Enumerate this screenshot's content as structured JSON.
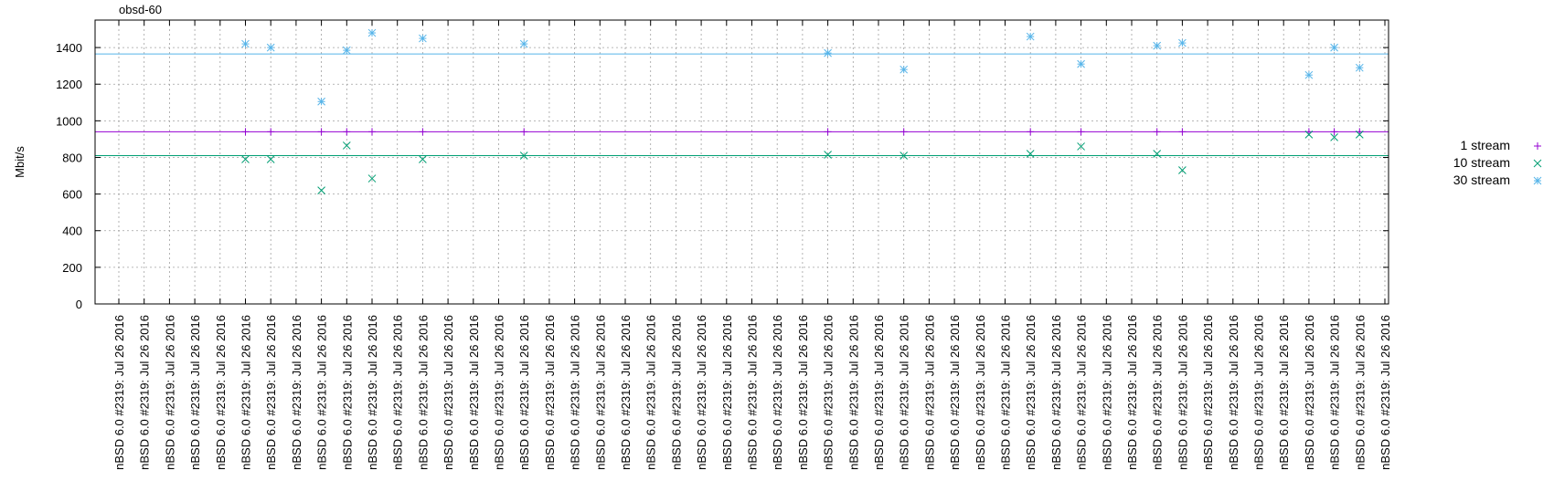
{
  "chart_data": {
    "type": "scatter",
    "title": "obsd-60",
    "ylabel": "Mbit/s",
    "xlabel": "",
    "ylim": [
      0,
      1550
    ],
    "yticks": [
      0,
      200,
      400,
      600,
      800,
      1000,
      1200,
      1400
    ],
    "grid": true,
    "legend_position": "right",
    "category_label": "nBSD 6.0 #2319: Jul 26 2016",
    "category_count": 51,
    "series": [
      {
        "name": "1 stream",
        "marker": "plus",
        "color": "#9400d3",
        "mean": 940,
        "points": [
          {
            "i": 5,
            "y": 940
          },
          {
            "i": 6,
            "y": 940
          },
          {
            "i": 8,
            "y": 940
          },
          {
            "i": 9,
            "y": 940
          },
          {
            "i": 10,
            "y": 940
          },
          {
            "i": 12,
            "y": 940
          },
          {
            "i": 16,
            "y": 940
          },
          {
            "i": 28,
            "y": 940
          },
          {
            "i": 31,
            "y": 940
          },
          {
            "i": 36,
            "y": 940
          },
          {
            "i": 38,
            "y": 940
          },
          {
            "i": 41,
            "y": 940
          },
          {
            "i": 42,
            "y": 940
          },
          {
            "i": 47,
            "y": 940
          },
          {
            "i": 48,
            "y": 940
          },
          {
            "i": 49,
            "y": 940
          }
        ]
      },
      {
        "name": "10 stream",
        "marker": "cross",
        "color": "#009e73",
        "mean": 810,
        "points": [
          {
            "i": 5,
            "y": 790
          },
          {
            "i": 6,
            "y": 790
          },
          {
            "i": 8,
            "y": 620
          },
          {
            "i": 9,
            "y": 865
          },
          {
            "i": 10,
            "y": 685
          },
          {
            "i": 12,
            "y": 790
          },
          {
            "i": 16,
            "y": 810
          },
          {
            "i": 28,
            "y": 815
          },
          {
            "i": 31,
            "y": 810
          },
          {
            "i": 36,
            "y": 820
          },
          {
            "i": 38,
            "y": 860
          },
          {
            "i": 41,
            "y": 820
          },
          {
            "i": 42,
            "y": 730
          },
          {
            "i": 47,
            "y": 925
          },
          {
            "i": 48,
            "y": 910
          },
          {
            "i": 49,
            "y": 925
          }
        ]
      },
      {
        "name": "30 stream",
        "marker": "star",
        "color": "#56b4e9",
        "mean": 1365,
        "points": [
          {
            "i": 5,
            "y": 1420
          },
          {
            "i": 6,
            "y": 1400
          },
          {
            "i": 8,
            "y": 1105
          },
          {
            "i": 9,
            "y": 1385
          },
          {
            "i": 10,
            "y": 1480
          },
          {
            "i": 12,
            "y": 1450
          },
          {
            "i": 16,
            "y": 1420
          },
          {
            "i": 28,
            "y": 1370
          },
          {
            "i": 31,
            "y": 1280
          },
          {
            "i": 36,
            "y": 1460
          },
          {
            "i": 38,
            "y": 1310
          },
          {
            "i": 41,
            "y": 1410
          },
          {
            "i": 42,
            "y": 1425
          },
          {
            "i": 47,
            "y": 1250
          },
          {
            "i": 48,
            "y": 1400
          },
          {
            "i": 49,
            "y": 1290
          }
        ]
      }
    ]
  }
}
